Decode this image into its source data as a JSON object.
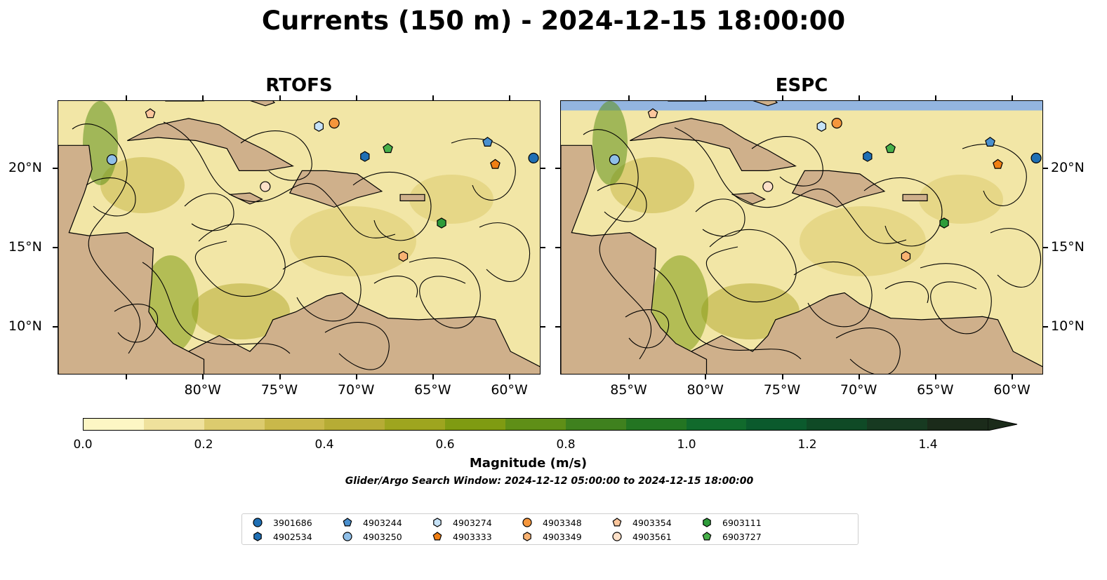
{
  "title": "Currents (150 m) - 2024-12-15 18:00:00",
  "panels": [
    {
      "title": "RTOFS"
    },
    {
      "title": "ESPC"
    }
  ],
  "axes": {
    "lon_labels": [
      "85°W",
      "80°W",
      "75°W",
      "70°W",
      "65°W",
      "60°W"
    ],
    "lat_labels": [
      "20°N",
      "15°N",
      "10°N"
    ]
  },
  "colorbar": {
    "label": "Magnitude (m/s)",
    "ticks": [
      "0.0",
      "0.2",
      "0.4",
      "0.6",
      "0.8",
      "1.0",
      "1.2",
      "1.4"
    ],
    "range": [
      0,
      1.5
    ],
    "colors": [
      "#fdf6c4",
      "#efe19c",
      "#dccb6e",
      "#c9b84a",
      "#b6ac35",
      "#9ea51f",
      "#7f9b12",
      "#5f8f17",
      "#3f811e",
      "#237522",
      "#116a2c",
      "#0b5a2d",
      "#0f4a26",
      "#173a21",
      "#1b2b1a"
    ]
  },
  "search_window": "Glider/Argo Search Window: 2024-12-12 05:00:00 to 2024-12-15 18:00:00",
  "map_colors": {
    "land": "#cfb08b",
    "ocean": "#93b5e0"
  },
  "legend": [
    {
      "id": "3901686",
      "shape": "circle",
      "color": "#1f6fb4"
    },
    {
      "id": "4902534",
      "shape": "hexagon",
      "color": "#1f6fb4"
    },
    {
      "id": "4903244",
      "shape": "pentagon",
      "color": "#4a90cf"
    },
    {
      "id": "4903250",
      "shape": "circle",
      "color": "#8fbfe8"
    },
    {
      "id": "4903274",
      "shape": "hexagon",
      "color": "#c6e2f7"
    },
    {
      "id": "4903333",
      "shape": "pentagon",
      "color": "#f07f14"
    },
    {
      "id": "4903348",
      "shape": "circle",
      "color": "#f5963c"
    },
    {
      "id": "4903349",
      "shape": "hexagon",
      "color": "#f8b272"
    },
    {
      "id": "4903354",
      "shape": "pentagon",
      "color": "#fbc69c"
    },
    {
      "id": "4903561",
      "shape": "circle",
      "color": "#fde0c8"
    },
    {
      "id": "6903111",
      "shape": "hexagon",
      "color": "#2e9c3a"
    },
    {
      "id": "6903727",
      "shape": "pentagon",
      "color": "#48b04a"
    }
  ],
  "floats": [
    {
      "id": "3901686",
      "lon": -58.5,
      "lat": 20.7
    },
    {
      "id": "4902534",
      "lon": -69.5,
      "lat": 20.8
    },
    {
      "id": "4903244",
      "lon": -61.5,
      "lat": 21.7
    },
    {
      "id": "4903250",
      "lon": -86.0,
      "lat": 20.6
    },
    {
      "id": "4903274",
      "lon": -72.5,
      "lat": 22.7
    },
    {
      "id": "4903333",
      "lon": -61.0,
      "lat": 20.3
    },
    {
      "id": "4903348",
      "lon": -71.5,
      "lat": 22.9
    },
    {
      "id": "4903349",
      "lon": -67.0,
      "lat": 14.5
    },
    {
      "id": "4903354",
      "lon": -83.5,
      "lat": 23.5
    },
    {
      "id": "4903561",
      "lon": -76.0,
      "lat": 18.9
    },
    {
      "id": "6903111",
      "lon": -64.5,
      "lat": 16.6
    },
    {
      "id": "6903727",
      "lon": -68.0,
      "lat": 21.3
    }
  ]
}
